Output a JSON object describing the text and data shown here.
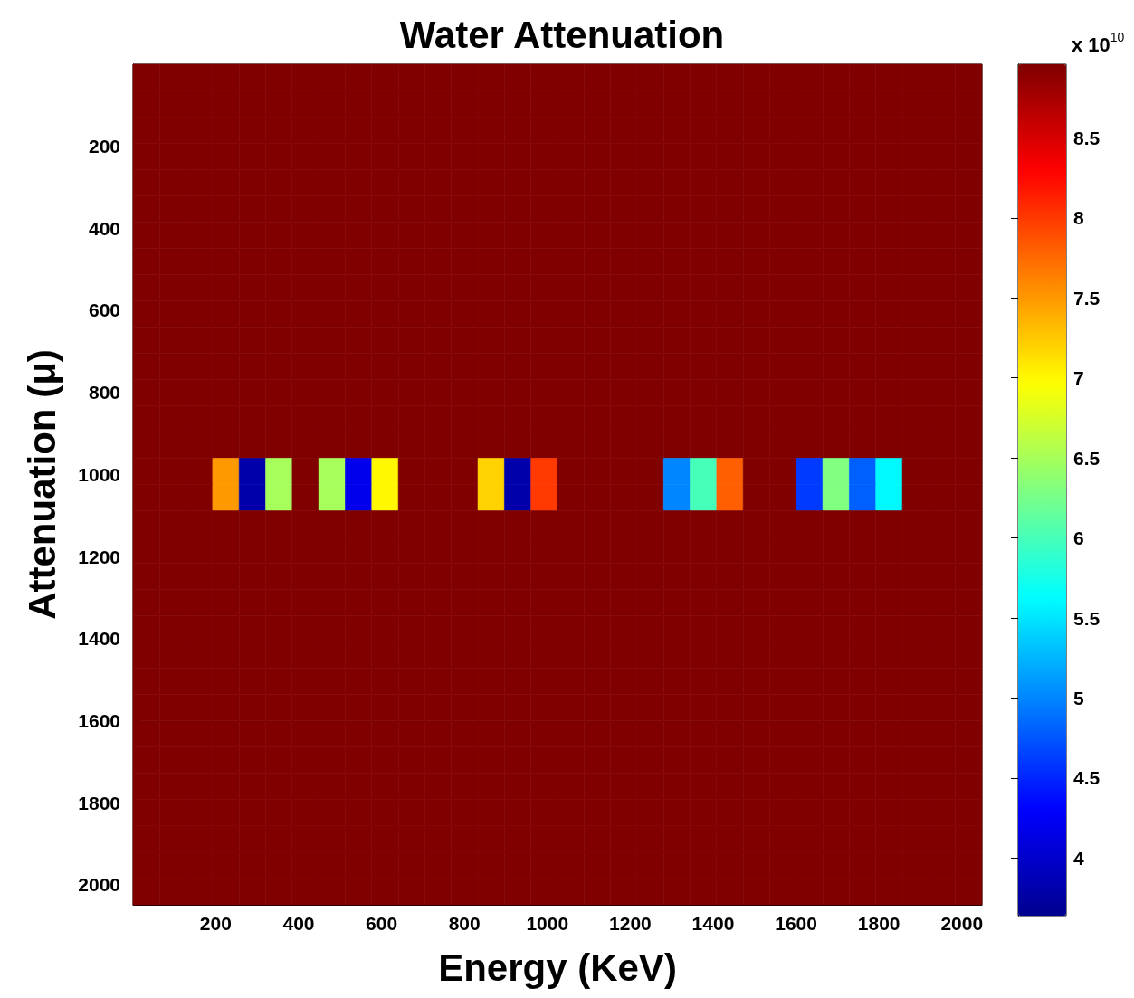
{
  "chart_data": {
    "type": "heatmap",
    "title": "Water Attenuation",
    "xlabel": "Energy (KeV)",
    "ylabel": "Attenuation (μ)",
    "clabel": "x 10$^{10}$",
    "xlim": [
      0.5,
      2048.5
    ],
    "ylim": [
      2048.5,
      0.5
    ],
    "xticks": [
      200,
      400,
      600,
      800,
      1000,
      1200,
      1400,
      1600,
      1800,
      2000
    ],
    "yticks": [
      200,
      400,
      600,
      800,
      1000,
      1200,
      1400,
      1600,
      1800,
      2000
    ],
    "clim": [
      3.64,
      8.96
    ],
    "cticks": [
      4,
      4.5,
      5,
      5.5,
      6,
      6.5,
      7,
      7.5,
      8,
      8.5
    ],
    "cells": [
      [
        8.96,
        8.96,
        8.96,
        8.96,
        8.96,
        8.96,
        8.96,
        8.96,
        8.96,
        8.96,
        8.96,
        8.96,
        8.96,
        8.96,
        8.96,
        8.96,
        8.96,
        8.96,
        8.96,
        8.96,
        8.96,
        8.96,
        8.96,
        8.96,
        8.96,
        8.96,
        8.96,
        8.96,
        8.96,
        8.96,
        8.96,
        8.96
      ],
      [
        8.96,
        8.96,
        8.96,
        8.96,
        8.96,
        8.96,
        8.96,
        8.96,
        8.96,
        8.96,
        8.96,
        8.96,
        8.96,
        8.96,
        8.96,
        8.96,
        8.96,
        8.96,
        8.96,
        8.96,
        8.96,
        8.96,
        8.96,
        8.96,
        8.96,
        8.96,
        8.96,
        8.96,
        8.96,
        8.96,
        8.96,
        8.96
      ],
      [
        8.96,
        8.96,
        8.96,
        8.96,
        8.96,
        8.96,
        8.96,
        8.96,
        8.96,
        8.96,
        8.96,
        8.96,
        8.96,
        8.96,
        8.96,
        8.96,
        8.96,
        8.96,
        8.96,
        8.96,
        8.96,
        8.96,
        8.96,
        8.96,
        8.96,
        8.96,
        8.96,
        8.96,
        8.96,
        8.96,
        8.96,
        8.96
      ],
      [
        8.96,
        8.96,
        8.96,
        8.96,
        8.96,
        8.96,
        8.96,
        8.96,
        8.96,
        8.96,
        8.96,
        8.96,
        8.96,
        8.96,
        8.96,
        8.96,
        8.96,
        8.96,
        8.96,
        8.96,
        8.96,
        8.96,
        8.96,
        8.96,
        8.96,
        8.96,
        8.96,
        8.96,
        8.96,
        8.96,
        8.96,
        8.96
      ],
      [
        8.96,
        8.96,
        8.96,
        8.96,
        8.96,
        8.96,
        8.96,
        8.96,
        8.96,
        8.96,
        8.96,
        8.96,
        8.96,
        8.96,
        8.96,
        8.96,
        8.96,
        8.96,
        8.96,
        8.96,
        8.96,
        8.96,
        8.96,
        8.96,
        8.96,
        8.96,
        8.96,
        8.96,
        8.96,
        8.96,
        8.96,
        8.96
      ],
      [
        8.96,
        8.96,
        8.96,
        8.96,
        8.96,
        8.96,
        8.96,
        8.96,
        8.96,
        8.96,
        8.96,
        8.96,
        8.96,
        8.96,
        8.96,
        8.96,
        8.96,
        8.96,
        8.96,
        8.96,
        8.96,
        8.96,
        8.96,
        8.96,
        8.96,
        8.96,
        8.96,
        8.96,
        8.96,
        8.96,
        8.96,
        8.96
      ],
      [
        8.96,
        8.96,
        8.96,
        8.96,
        8.96,
        8.96,
        8.96,
        8.96,
        8.96,
        8.96,
        8.96,
        8.96,
        8.96,
        8.96,
        8.96,
        8.96,
        8.96,
        8.96,
        8.96,
        8.96,
        8.96,
        8.96,
        8.96,
        8.96,
        8.96,
        8.96,
        8.96,
        8.96,
        8.96,
        8.96,
        8.96,
        8.96
      ],
      [
        8.96,
        8.96,
        8.96,
        8.96,
        8.96,
        8.96,
        8.96,
        8.96,
        8.96,
        8.96,
        8.96,
        8.96,
        8.96,
        8.96,
        8.96,
        8.96,
        8.96,
        8.96,
        8.96,
        8.96,
        8.96,
        8.96,
        8.96,
        8.96,
        8.96,
        8.96,
        8.96,
        8.96,
        8.96,
        8.96,
        8.96,
        8.96
      ],
      [
        8.96,
        8.96,
        8.96,
        8.96,
        8.96,
        8.96,
        8.96,
        8.96,
        8.96,
        8.96,
        8.96,
        8.96,
        8.96,
        8.96,
        8.96,
        8.96,
        8.96,
        8.96,
        8.96,
        8.96,
        8.96,
        8.96,
        8.96,
        8.96,
        8.96,
        8.96,
        8.96,
        8.96,
        8.96,
        8.96,
        8.96,
        8.96
      ],
      [
        8.96,
        8.96,
        8.96,
        8.96,
        8.96,
        8.96,
        8.96,
        8.96,
        8.96,
        8.96,
        8.96,
        8.96,
        8.96,
        8.96,
        8.96,
        8.96,
        8.96,
        8.96,
        8.96,
        8.96,
        8.96,
        8.96,
        8.96,
        8.96,
        8.96,
        8.96,
        8.96,
        8.96,
        8.96,
        8.96,
        8.96,
        8.96
      ],
      [
        8.96,
        8.96,
        8.96,
        8.96,
        8.96,
        8.96,
        8.96,
        8.96,
        8.96,
        8.96,
        8.96,
        8.96,
        8.96,
        8.96,
        8.96,
        8.96,
        8.96,
        8.96,
        8.96,
        8.96,
        8.96,
        8.96,
        8.96,
        8.96,
        8.96,
        8.96,
        8.96,
        8.96,
        8.96,
        8.96,
        8.96,
        8.96
      ],
      [
        8.96,
        8.96,
        8.96,
        8.96,
        8.96,
        8.96,
        8.96,
        8.96,
        8.96,
        8.96,
        8.96,
        8.96,
        8.96,
        8.96,
        8.96,
        8.96,
        8.96,
        8.96,
        8.96,
        8.96,
        8.96,
        8.96,
        8.96,
        8.96,
        8.96,
        8.96,
        8.96,
        8.96,
        8.96,
        8.96,
        8.96,
        8.96
      ],
      [
        8.96,
        8.96,
        8.96,
        8.96,
        8.96,
        8.96,
        8.96,
        8.96,
        8.96,
        8.96,
        8.96,
        8.96,
        8.96,
        8.96,
        8.96,
        8.96,
        8.96,
        8.96,
        8.96,
        8.96,
        8.96,
        8.96,
        8.96,
        8.96,
        8.96,
        8.96,
        8.96,
        8.96,
        8.96,
        8.96,
        8.96,
        8.96
      ],
      [
        8.96,
        8.96,
        8.96,
        8.96,
        8.96,
        8.96,
        8.96,
        8.96,
        8.96,
        8.96,
        8.96,
        8.96,
        8.96,
        8.96,
        8.96,
        8.96,
        8.96,
        8.96,
        8.96,
        8.96,
        8.96,
        8.96,
        8.96,
        8.96,
        8.96,
        8.96,
        8.96,
        8.96,
        8.96,
        8.96,
        8.96,
        8.96
      ],
      [
        8.96,
        8.96,
        8.96,
        8.96,
        8.96,
        8.96,
        8.96,
        8.96,
        8.96,
        8.96,
        8.96,
        8.96,
        8.96,
        8.96,
        8.96,
        8.96,
        8.96,
        8.96,
        8.96,
        8.96,
        8.96,
        8.96,
        8.96,
        8.96,
        8.96,
        8.96,
        8.96,
        8.96,
        8.96,
        8.96,
        8.96,
        8.96
      ],
      [
        8.96,
        8.96,
        8.96,
        7.5,
        3.8,
        6.5,
        8.96,
        6.5,
        4.2,
        7,
        8.96,
        8.96,
        8.96,
        7.2,
        3.8,
        8,
        8.96,
        8.96,
        8.96,
        8.96,
        5,
        6,
        7.8,
        8.96,
        8.96,
        4.6,
        6.3,
        4.8,
        5.6,
        8.96,
        8.96,
        8.96
      ],
      [
        8.96,
        8.96,
        8.96,
        7.5,
        3.8,
        6.5,
        8.96,
        6.5,
        4.2,
        7,
        8.96,
        8.96,
        8.96,
        7.2,
        3.8,
        8,
        8.96,
        8.96,
        8.96,
        8.96,
        5,
        6,
        7.8,
        8.96,
        8.96,
        4.6,
        6.3,
        4.8,
        5.6,
        8.96,
        8.96,
        8.96
      ],
      [
        8.96,
        8.96,
        8.96,
        8.96,
        8.96,
        8.96,
        8.96,
        8.96,
        8.96,
        8.96,
        8.96,
        8.96,
        8.96,
        8.96,
        8.96,
        8.96,
        8.96,
        8.96,
        8.96,
        8.96,
        8.96,
        8.96,
        8.96,
        8.96,
        8.96,
        8.96,
        8.96,
        8.96,
        8.96,
        8.96,
        8.96,
        8.96
      ],
      [
        8.96,
        8.96,
        8.96,
        8.96,
        8.96,
        8.96,
        8.96,
        8.96,
        8.96,
        8.96,
        8.96,
        8.96,
        8.96,
        8.96,
        8.96,
        8.96,
        8.96,
        8.96,
        8.96,
        8.96,
        8.96,
        8.96,
        8.96,
        8.96,
        8.96,
        8.96,
        8.96,
        8.96,
        8.96,
        8.96,
        8.96,
        8.96
      ],
      [
        8.96,
        8.96,
        8.96,
        8.96,
        8.96,
        8.96,
        8.96,
        8.96,
        8.96,
        8.96,
        8.96,
        8.96,
        8.96,
        8.96,
        8.96,
        8.96,
        8.96,
        8.96,
        8.96,
        8.96,
        8.96,
        8.96,
        8.96,
        8.96,
        8.96,
        8.96,
        8.96,
        8.96,
        8.96,
        8.96,
        8.96,
        8.96
      ],
      [
        8.96,
        8.96,
        8.96,
        8.96,
        8.96,
        8.96,
        8.96,
        8.96,
        8.96,
        8.96,
        8.96,
        8.96,
        8.96,
        8.96,
        8.96,
        8.96,
        8.96,
        8.96,
        8.96,
        8.96,
        8.96,
        8.96,
        8.96,
        8.96,
        8.96,
        8.96,
        8.96,
        8.96,
        8.96,
        8.96,
        8.96,
        8.96
      ],
      [
        8.96,
        8.96,
        8.96,
        8.96,
        8.96,
        8.96,
        8.96,
        8.96,
        8.96,
        8.96,
        8.96,
        8.96,
        8.96,
        8.96,
        8.96,
        8.96,
        8.96,
        8.96,
        8.96,
        8.96,
        8.96,
        8.96,
        8.96,
        8.96,
        8.96,
        8.96,
        8.96,
        8.96,
        8.96,
        8.96,
        8.96,
        8.96
      ],
      [
        8.96,
        8.96,
        8.96,
        8.96,
        8.96,
        8.96,
        8.96,
        8.96,
        8.96,
        8.96,
        8.96,
        8.96,
        8.96,
        8.96,
        8.96,
        8.96,
        8.96,
        8.96,
        8.96,
        8.96,
        8.96,
        8.96,
        8.96,
        8.96,
        8.96,
        8.96,
        8.96,
        8.96,
        8.96,
        8.96,
        8.96,
        8.96
      ],
      [
        8.96,
        8.96,
        8.96,
        8.96,
        8.96,
        8.96,
        8.96,
        8.96,
        8.96,
        8.96,
        8.96,
        8.96,
        8.96,
        8.96,
        8.96,
        8.96,
        8.96,
        8.96,
        8.96,
        8.96,
        8.96,
        8.96,
        8.96,
        8.96,
        8.96,
        8.96,
        8.96,
        8.96,
        8.96,
        8.96,
        8.96,
        8.96
      ],
      [
        8.96,
        8.96,
        8.96,
        8.96,
        8.96,
        8.96,
        8.96,
        8.96,
        8.96,
        8.96,
        8.96,
        8.96,
        8.96,
        8.96,
        8.96,
        8.96,
        8.96,
        8.96,
        8.96,
        8.96,
        8.96,
        8.96,
        8.96,
        8.96,
        8.96,
        8.96,
        8.96,
        8.96,
        8.96,
        8.96,
        8.96,
        8.96
      ],
      [
        8.96,
        8.96,
        8.96,
        8.96,
        8.96,
        8.96,
        8.96,
        8.96,
        8.96,
        8.96,
        8.96,
        8.96,
        8.96,
        8.96,
        8.96,
        8.96,
        8.96,
        8.96,
        8.96,
        8.96,
        8.96,
        8.96,
        8.96,
        8.96,
        8.96,
        8.96,
        8.96,
        8.96,
        8.96,
        8.96,
        8.96,
        8.96
      ],
      [
        8.96,
        8.96,
        8.96,
        8.96,
        8.96,
        8.96,
        8.96,
        8.96,
        8.96,
        8.96,
        8.96,
        8.96,
        8.96,
        8.96,
        8.96,
        8.96,
        8.96,
        8.96,
        8.96,
        8.96,
        8.96,
        8.96,
        8.96,
        8.96,
        8.96,
        8.96,
        8.96,
        8.96,
        8.96,
        8.96,
        8.96,
        8.96
      ],
      [
        8.96,
        8.96,
        8.96,
        8.96,
        8.96,
        8.96,
        8.96,
        8.96,
        8.96,
        8.96,
        8.96,
        8.96,
        8.96,
        8.96,
        8.96,
        8.96,
        8.96,
        8.96,
        8.96,
        8.96,
        8.96,
        8.96,
        8.96,
        8.96,
        8.96,
        8.96,
        8.96,
        8.96,
        8.96,
        8.96,
        8.96,
        8.96
      ],
      [
        8.96,
        8.96,
        8.96,
        8.96,
        8.96,
        8.96,
        8.96,
        8.96,
        8.96,
        8.96,
        8.96,
        8.96,
        8.96,
        8.96,
        8.96,
        8.96,
        8.96,
        8.96,
        8.96,
        8.96,
        8.96,
        8.96,
        8.96,
        8.96,
        8.96,
        8.96,
        8.96,
        8.96,
        8.96,
        8.96,
        8.96,
        8.96
      ],
      [
        8.96,
        8.96,
        8.96,
        8.96,
        8.96,
        8.96,
        8.96,
        8.96,
        8.96,
        8.96,
        8.96,
        8.96,
        8.96,
        8.96,
        8.96,
        8.96,
        8.96,
        8.96,
        8.96,
        8.96,
        8.96,
        8.96,
        8.96,
        8.96,
        8.96,
        8.96,
        8.96,
        8.96,
        8.96,
        8.96,
        8.96,
        8.96
      ],
      [
        8.96,
        8.96,
        8.96,
        8.96,
        8.96,
        8.96,
        8.96,
        8.96,
        8.96,
        8.96,
        8.96,
        8.96,
        8.96,
        8.96,
        8.96,
        8.96,
        8.96,
        8.96,
        8.96,
        8.96,
        8.96,
        8.96,
        8.96,
        8.96,
        8.96,
        8.96,
        8.96,
        8.96,
        8.96,
        8.96,
        8.96,
        8.96
      ],
      [
        8.96,
        8.96,
        8.96,
        8.96,
        8.96,
        8.96,
        8.96,
        8.96,
        8.96,
        8.96,
        8.96,
        8.96,
        8.96,
        8.96,
        8.96,
        8.96,
        8.96,
        8.96,
        8.96,
        8.96,
        8.96,
        8.96,
        8.96,
        8.96,
        8.96,
        8.96,
        8.96,
        8.96,
        8.96,
        8.96,
        8.96,
        8.96
      ]
    ]
  }
}
